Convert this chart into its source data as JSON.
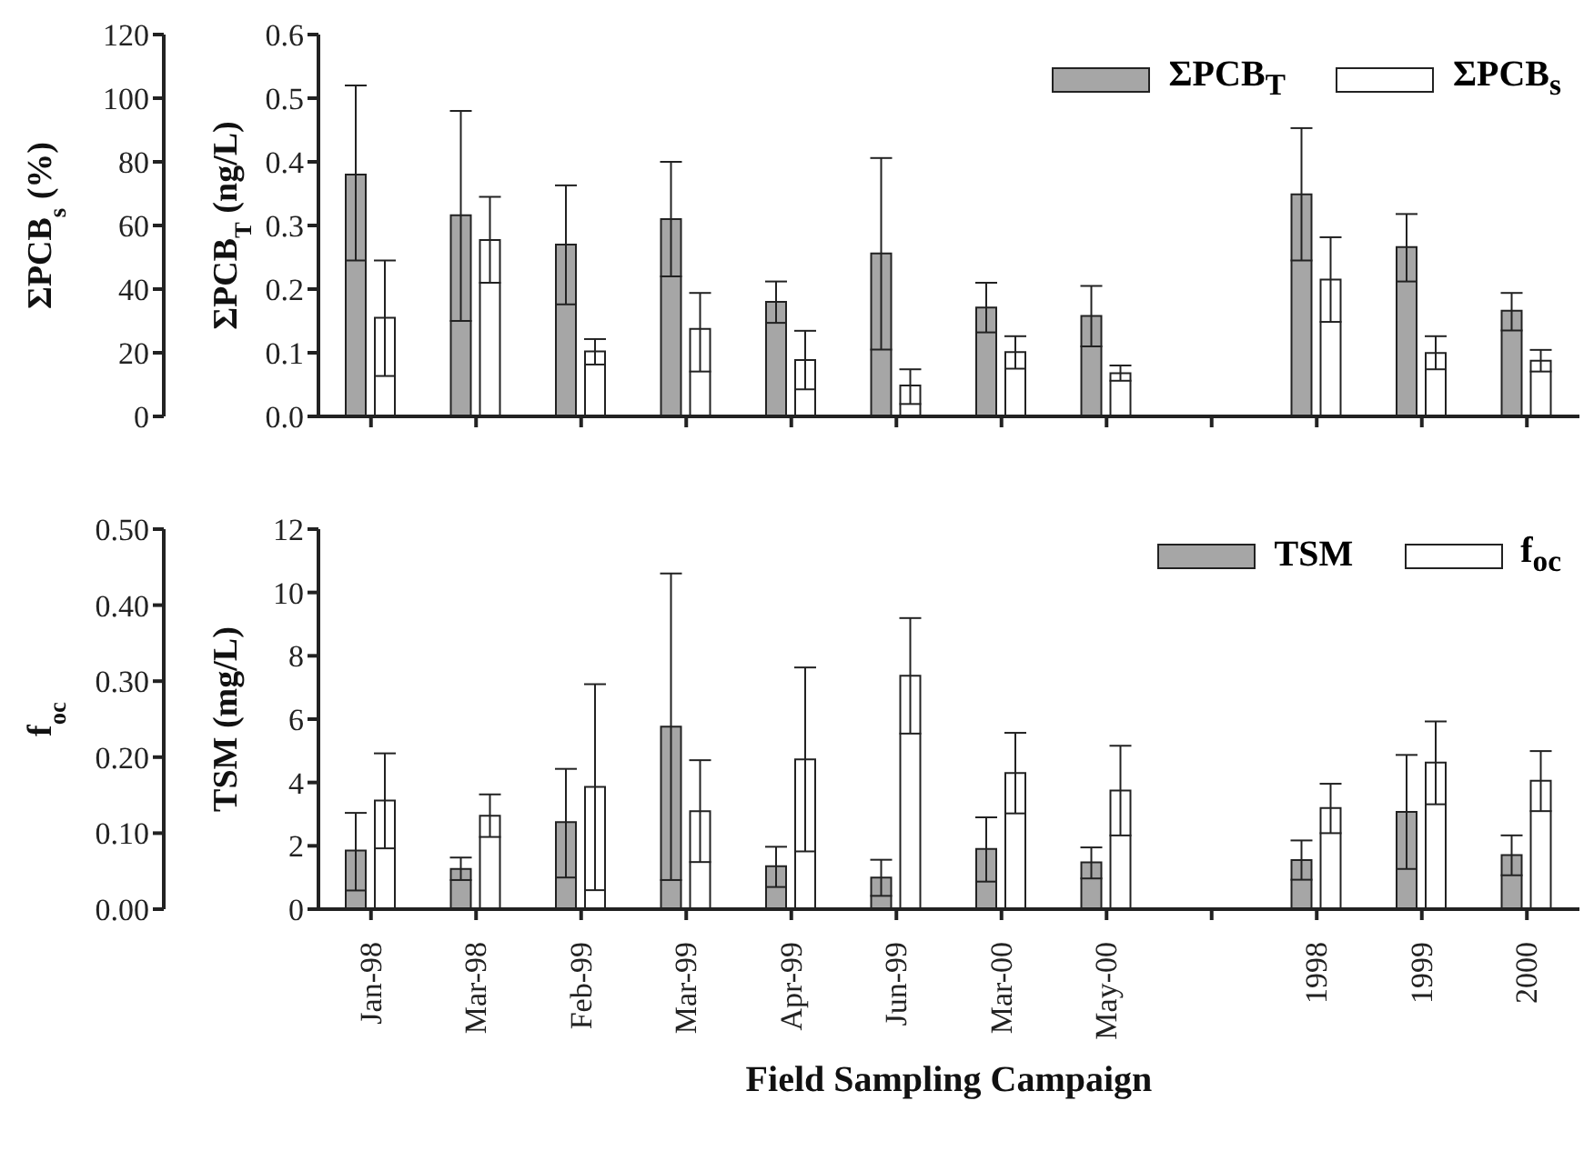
{
  "chart_data": [
    {
      "type": "bar",
      "categories": [
        null,
        null,
        null,
        null,
        null,
        null,
        null,
        null,
        null,
        null,
        null,
        null
      ],
      "ylabel": "ΣPCB$_{T}$ (ng/L)",
      "y2label": "ΣPCB$_{s}$ (%)",
      "ylim": [
        0,
        0.6
      ],
      "yticks": [
        {
          "value": 0,
          "label": "0.0"
        },
        0.1,
        0.2,
        0.3,
        0.4,
        0.5,
        0.6
      ],
      "y2lim": [
        0,
        120
      ],
      "y2ticks": [
        0,
        20,
        40,
        60,
        80,
        100,
        120
      ],
      "tick_labels": "y",
      "legend": "top right",
      "series": [
        {
          "name": "ΣPCB$_{T}$",
          "color": "#a6a6a6",
          "values": [
            0.38,
            0.316,
            0.27,
            0.31,
            0.18,
            0.256,
            0.171,
            0.158,
            null,
            0.349,
            0.266,
            0.166
          ],
          "errors": [
            [
              0.245,
              0.52
            ],
            [
              0.15,
              0.48
            ],
            [
              0.176,
              0.363
            ],
            [
              0.22,
              0.4
            ],
            [
              0.147,
              0.212
            ],
            [
              0.105,
              0.406
            ],
            [
              0.132,
              0.21
            ],
            [
              0.11,
              0.205
            ],
            null,
            [
              0.245,
              0.453
            ],
            [
              0.212,
              0.318
            ],
            [
              0.135,
              0.194
            ]
          ]
        },
        {
          "name": "ΣPCB$_{s}$",
          "color": "#ffffff",
          "axis": "y2",
          "values": [
            31,
            55.4,
            20.4,
            27.5,
            17.7,
            9.7,
            20.2,
            13.6,
            null,
            43,
            19.9,
            17.5
          ],
          "errors": [
            [
              12.7,
              49
            ],
            [
              42,
              69
            ],
            [
              16.3,
              24.3
            ],
            [
              14.1,
              38.8
            ],
            [
              8.5,
              26.9
            ],
            [
              3.9,
              14.8
            ],
            [
              15,
              25.2
            ],
            [
              11.2,
              16
            ],
            null,
            [
              29.7,
              56.3
            ],
            [
              14.8,
              25.2
            ],
            [
              14.1,
              20.9
            ]
          ]
        }
      ]
    },
    {
      "type": "bar",
      "categories": [
        "Jan-98",
        "Mar-98",
        "Feb-99",
        "Mar-99",
        "Apr-99",
        "Jun-99",
        "Mar-00",
        "May-00",
        null,
        "1998",
        "1999",
        "2000"
      ],
      "xlabel": "Field Sampling Campaign",
      "ylabel": "TSM (mg/L)",
      "y2label": "f$_{oc}$",
      "ylim": [
        0,
        12
      ],
      "yticks": [
        0,
        2,
        4,
        6,
        8,
        10,
        12
      ],
      "y2lim": [
        0,
        0.5
      ],
      "y2ticks": [
        {
          "value": 0,
          "label": "0.00"
        },
        {
          "value": 0.1,
          "label": "0.10"
        },
        {
          "value": 0.2,
          "label": "0.20"
        },
        {
          "value": 0.3,
          "label": "0.30"
        },
        {
          "value": 0.4,
          "label": "0.40"
        },
        {
          "value": 0.5,
          "label": "0.50"
        }
      ],
      "legend": "top right",
      "series": [
        {
          "name": "TSM",
          "color": "#a6a6a6",
          "values": [
            1.85,
            1.27,
            2.75,
            5.76,
            1.36,
            1.0,
            1.9,
            1.48,
            null,
            1.55,
            3.07,
            1.71
          ],
          "errors": [
            [
              0.59,
              3.04
            ],
            [
              0.92,
              1.63
            ],
            [
              1.0,
              4.43
            ],
            [
              0.92,
              10.6
            ],
            [
              0.7,
              1.97
            ],
            [
              0.42,
              1.56
            ],
            [
              0.87,
              2.9
            ],
            [
              0.97,
              1.95
            ],
            null,
            [
              0.93,
              2.17
            ],
            [
              1.27,
              4.87
            ],
            [
              1.07,
              2.33
            ]
          ]
        },
        {
          "name": "f$_{oc}$",
          "color": "#ffffff",
          "axis": "y2",
          "values": [
            0.143,
            0.123,
            0.161,
            0.129,
            0.197,
            0.307,
            0.179,
            0.156,
            null,
            0.133,
            0.193,
            0.169
          ],
          "errors": [
            [
              0.08,
              0.205
            ],
            [
              0.095,
              0.151
            ],
            [
              0.025,
              0.296
            ],
            [
              0.062,
              0.196
            ],
            [
              0.076,
              0.318
            ],
            [
              0.231,
              0.383
            ],
            [
              0.126,
              0.232
            ],
            [
              0.097,
              0.215
            ],
            null,
            [
              0.1,
              0.165
            ],
            [
              0.138,
              0.247
            ],
            [
              0.129,
              0.208
            ]
          ]
        }
      ]
    }
  ]
}
